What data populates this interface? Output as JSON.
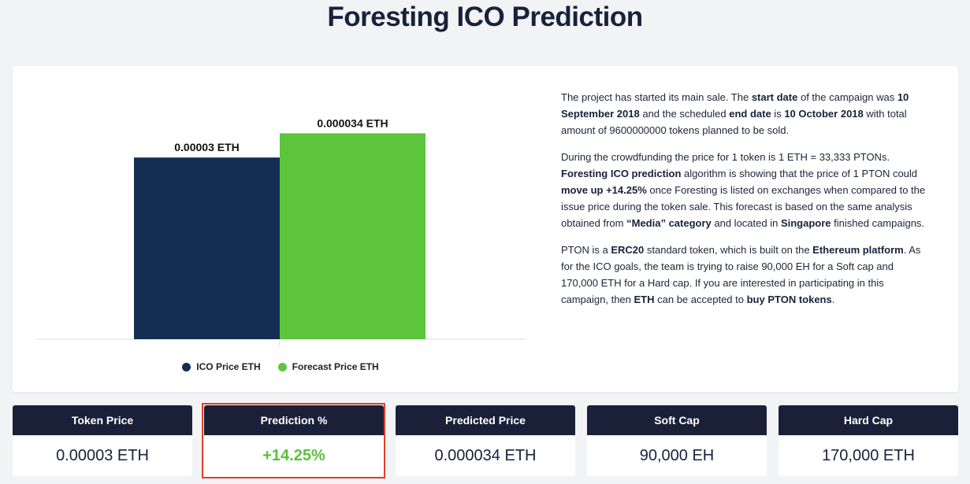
{
  "page": {
    "title": "Foresting ICO Prediction"
  },
  "chart_data": {
    "type": "bar",
    "categories": [
      "ICO Price ETH",
      "Forecast Price ETH"
    ],
    "values": [
      3e-05,
      3.4e-05
    ],
    "value_labels": [
      "0.00003 ETH",
      "0.000034 ETH"
    ],
    "colors": [
      "#142d52",
      "#5cc53b"
    ],
    "ylim": [
      0,
      3.6e-05
    ],
    "grid": false,
    "legend_placement": "bottom-center",
    "title": "",
    "xlabel": "",
    "ylabel": ""
  },
  "legend": {
    "items": [
      {
        "label": "ICO Price ETH",
        "color": "#142d52"
      },
      {
        "label": "Forecast Price ETH",
        "color": "#5cc53b"
      }
    ]
  },
  "description": {
    "p1": {
      "t1": "The project has started its main sale. The ",
      "b1": "start date",
      "t2": " of the campaign was ",
      "b2": "10 September 2018",
      "t3": " and the scheduled ",
      "b3": "end date",
      "t4": " is ",
      "b4": "10 October 2018",
      "t5": " with total amount of 9600000000 tokens planned to be sold."
    },
    "p2": {
      "t1": "During the crowdfunding the price for 1 token is 1 ETH = 33,333 PTONs. ",
      "b1": "Foresting ICO prediction",
      "t2": " algorithm is showing that the price of 1 PTON could ",
      "b2": "move up +14.25%",
      "t3": " once Foresting is listed on exchanges when compared to the issue price during the token sale. This forecast is based on the same analysis obtained from ",
      "b3": "“Media” category",
      "t4": " and located in ",
      "b4": "Singapore",
      "t5": " finished campaigns."
    },
    "p3": {
      "t1": "PTON is a ",
      "b1": "ERC20",
      "t2": " standard token, which is built on the ",
      "b2": "Ethereum platform",
      "t3": ". As for the ICO goals, the team is trying to raise 90,000 EH for a Soft cap and 170,000 ETH for a Hard cap. If you are interested in participating in this campaign, then ",
      "b3": "ETH",
      "t4": " can be accepted to ",
      "b4": "buy PTON tokens",
      "t5": "."
    }
  },
  "stats": [
    {
      "label": "Token Price",
      "value": "0.00003 ETH"
    },
    {
      "label": "Prediction %",
      "value": "+14.25%"
    },
    {
      "label": "Predicted Price",
      "value": "0.000034 ETH"
    },
    {
      "label": "Soft Cap",
      "value": "90,000 EH"
    },
    {
      "label": "Hard Cap",
      "value": "170,000 ETH"
    }
  ],
  "colors": {
    "navy": "#1b2039",
    "green": "#5cc13b",
    "highlight": "#e0402a",
    "background": "#f2f3f5"
  }
}
